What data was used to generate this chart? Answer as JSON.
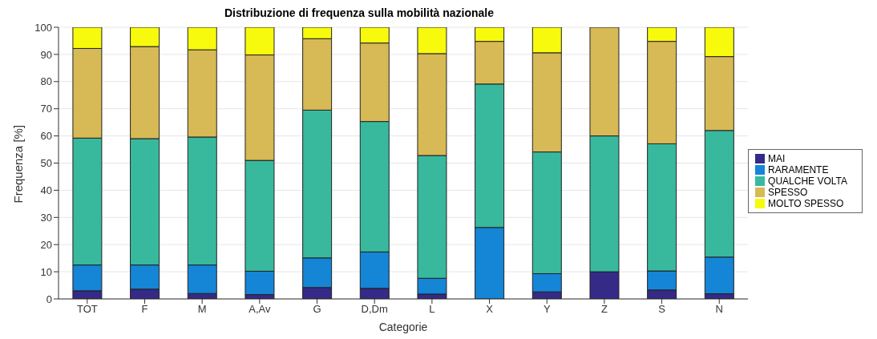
{
  "chart_data": {
    "type": "bar",
    "title": "Distribuzione di frequenza sulla mobilità nazionale",
    "xlabel": "Categorie",
    "ylabel": "Frequenza [%]",
    "categories": [
      "TOT",
      "F",
      "M",
      "A,Av",
      "G",
      "D,Dm",
      "L",
      "X",
      "Y",
      "Z",
      "S",
      "N"
    ],
    "stacked": true,
    "ylim": [
      0,
      100
    ],
    "yticks": [
      0,
      10,
      20,
      30,
      40,
      50,
      60,
      70,
      80,
      90,
      100
    ],
    "grid": "y",
    "legend": "right",
    "series": [
      {
        "name": "MAI",
        "color": "#352a87",
        "values": [
          3,
          3.6,
          2,
          1.6,
          4.2,
          3.9,
          1.8,
          0,
          2.6,
          10,
          3.3,
          1.9
        ]
      },
      {
        "name": "RARAMENTE",
        "color": "#1585d6",
        "values": [
          9.5,
          8.9,
          10.5,
          8.6,
          10.9,
          13.4,
          5.8,
          26.3,
          6.7,
          0,
          7,
          13.5
        ]
      },
      {
        "name": "QUALCHE VOLTA",
        "color": "#38b99e",
        "values": [
          46.7,
          46.5,
          47.1,
          40.8,
          54.4,
          48,
          45.2,
          52.8,
          44.8,
          50,
          46.8,
          46.6
        ]
      },
      {
        "name": "SPESSO",
        "color": "#d7b955",
        "values": [
          33,
          33.9,
          32.1,
          38.8,
          26.3,
          28.9,
          37.5,
          15.7,
          36.5,
          40,
          37.7,
          27.2
        ]
      },
      {
        "name": "MOLTO SPESSO",
        "color": "#f8fa0d",
        "values": [
          7.8,
          7.1,
          8.3,
          10.2,
          4.2,
          5.8,
          9.7,
          5.2,
          9.4,
          0,
          5.2,
          10.8
        ]
      }
    ]
  }
}
